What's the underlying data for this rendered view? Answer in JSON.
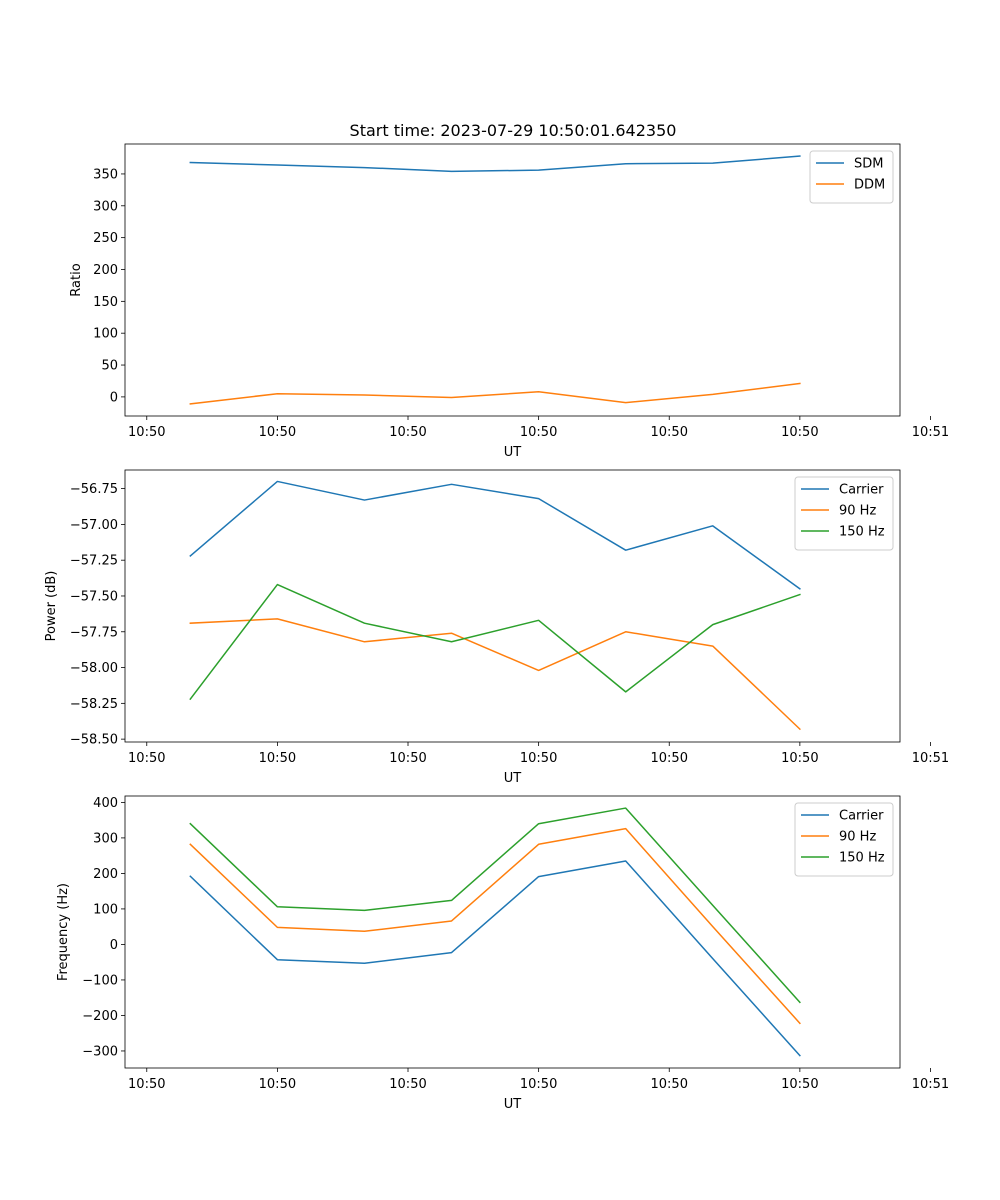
{
  "title": "Start time: 2023-07-29 10:50:01.642350",
  "chart_data": [
    {
      "type": "line",
      "title": "Start time: 2023-07-29 10:50:01.642350",
      "xlabel": "UT",
      "ylabel": "Ratio",
      "x": [
        1,
        2,
        3,
        4,
        5,
        6,
        7,
        8
      ],
      "xlim": [
        0.25,
        9.15
      ],
      "xticks": [
        0.5,
        2,
        3.5,
        5,
        6.5,
        8,
        9.5
      ],
      "xtick_labels": [
        "10:50",
        "10:50",
        "10:50",
        "10:50",
        "10:50",
        "10:50",
        "10:51"
      ],
      "ylim": [
        -30,
        397
      ],
      "yticks": [
        0,
        50,
        100,
        150,
        200,
        250,
        300,
        350
      ],
      "ytick_labels": [
        "0",
        "50",
        "100",
        "150",
        "200",
        "250",
        "300",
        "350"
      ],
      "legend_loc": "upper right",
      "series": [
        {
          "name": "SDM",
          "color": "#1f77b4",
          "values": [
            368,
            364,
            360,
            354,
            356,
            366,
            367,
            378
          ]
        },
        {
          "name": "DDM",
          "color": "#ff7f0e",
          "values": [
            -11,
            5,
            3,
            -1,
            8,
            -9,
            4,
            21
          ]
        }
      ]
    },
    {
      "type": "line",
      "title": "",
      "xlabel": "UT",
      "ylabel": "Power (dB)",
      "x": [
        1,
        2,
        3,
        4,
        5,
        6,
        7,
        8
      ],
      "xlim": [
        0.25,
        9.15
      ],
      "xticks": [
        0.5,
        2,
        3.5,
        5,
        6.5,
        8,
        9.5
      ],
      "xtick_labels": [
        "10:50",
        "10:50",
        "10:50",
        "10:50",
        "10:50",
        "10:50",
        "10:51"
      ],
      "ylim": [
        -58.52,
        -56.62
      ],
      "yticks": [
        -58.5,
        -58.25,
        -58.0,
        -57.75,
        -57.5,
        -57.25,
        -57.0,
        -56.75
      ],
      "ytick_labels": [
        "−58.50",
        "−58.25",
        "−58.00",
        "−57.75",
        "−57.50",
        "−57.25",
        "−57.00",
        "−56.75"
      ],
      "legend_loc": "upper right",
      "series": [
        {
          "name": "Carrier",
          "color": "#1f77b4",
          "values": [
            -57.22,
            -56.7,
            -56.83,
            -56.72,
            -56.82,
            -57.18,
            -57.01,
            -57.45
          ]
        },
        {
          "name": "90 Hz",
          "color": "#ff7f0e",
          "values": [
            -57.69,
            -57.66,
            -57.82,
            -57.76,
            -58.02,
            -57.75,
            -57.85,
            -58.43
          ]
        },
        {
          "name": "150 Hz",
          "color": "#2ca02c",
          "values": [
            -58.22,
            -57.42,
            -57.69,
            -57.82,
            -57.67,
            -58.17,
            -57.7,
            -57.49
          ]
        }
      ]
    },
    {
      "type": "line",
      "title": "",
      "xlabel": "UT",
      "ylabel": "Frequency (Hz)",
      "x": [
        1,
        2,
        3,
        4,
        5,
        6,
        7,
        8
      ],
      "xlim": [
        0.25,
        9.15
      ],
      "xticks": [
        0.5,
        2,
        3.5,
        5,
        6.5,
        8,
        9.5
      ],
      "xtick_labels": [
        "10:50",
        "10:50",
        "10:50",
        "10:50",
        "10:50",
        "10:50",
        "10:51"
      ],
      "ylim": [
        -348,
        418
      ],
      "yticks": [
        -300,
        -200,
        -100,
        0,
        100,
        200,
        300,
        400
      ],
      "ytick_labels": [
        "−300",
        "−200",
        "−100",
        "0",
        "100",
        "200",
        "300",
        "400"
      ],
      "legend_loc": "upper right",
      "series": [
        {
          "name": "Carrier",
          "color": "#1f77b4",
          "values": [
            192,
            -43,
            -53,
            -23,
            191,
            235,
            -40,
            -313
          ]
        },
        {
          "name": "90 Hz",
          "color": "#ff7f0e",
          "values": [
            282,
            48,
            37,
            66,
            282,
            326,
            50,
            -222
          ]
        },
        {
          "name": "150 Hz",
          "color": "#2ca02c",
          "values": [
            340,
            106,
            96,
            124,
            340,
            384,
            110,
            -163
          ]
        }
      ]
    }
  ]
}
